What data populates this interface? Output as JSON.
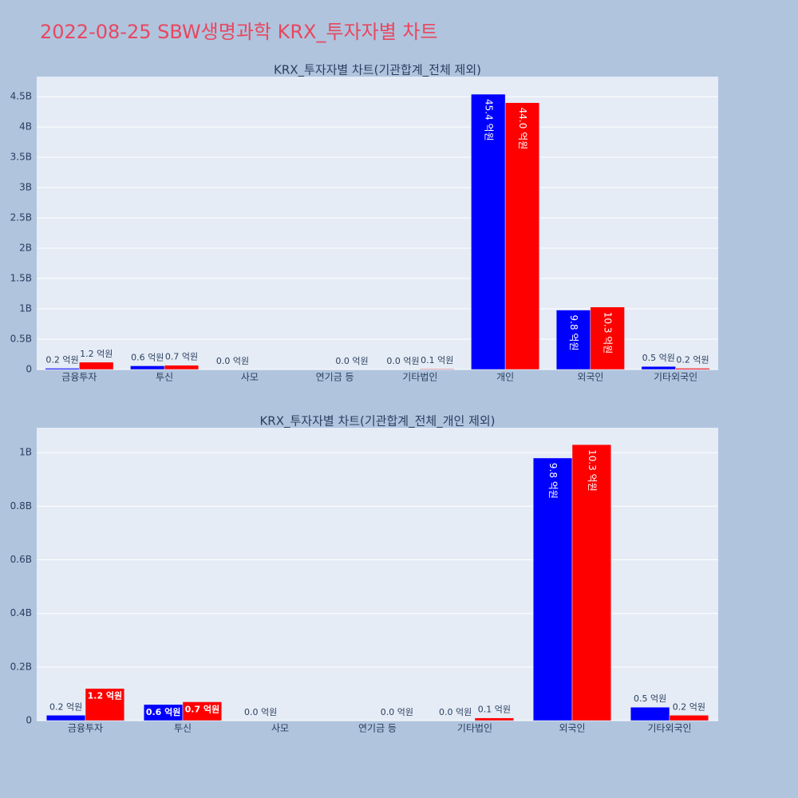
{
  "title": "2022-08-25 SBW생명과학 KRX_투자자별 차트",
  "chart_data": [
    {
      "type": "bar",
      "title": "KRX_투자자별 차트(기관합계_전체 제외)",
      "categories": [
        "금융투자",
        "투신",
        "사모",
        "연기금 등",
        "기타법인",
        "개인",
        "외국인",
        "기타외국인"
      ],
      "series": [
        {
          "color": "#0000ff",
          "values": [
            20000000,
            60000000,
            0,
            null,
            0,
            4540000000,
            980000000,
            50000000
          ],
          "value_labels": [
            "0.2 억원",
            "0.6 억원",
            "0.0 억원",
            null,
            "0.0 억원",
            "45.4 억원",
            "9.8 억원",
            "0.5 억원"
          ]
        },
        {
          "color": "#ff0000",
          "values": [
            120000000,
            70000000,
            null,
            0,
            10000000,
            4400000000,
            1030000000,
            20000000
          ],
          "value_labels": [
            "1.2 억원",
            "0.7 억원",
            null,
            "0.0 억원",
            "0.1 억원",
            "44.0 억원",
            "10.3 억원",
            "0.2 억원"
          ]
        }
      ],
      "ylim": [
        0,
        4830000000
      ],
      "yticks": [
        0,
        {
          "value": 500000000,
          "label": "0.5B"
        },
        {
          "value": 1000000000,
          "label": "1B"
        },
        {
          "value": 1500000000,
          "label": "1.5B"
        },
        {
          "value": 2000000000,
          "label": "2B"
        },
        {
          "value": 2500000000,
          "label": "2.5B"
        },
        {
          "value": 3000000000,
          "label": "3B"
        },
        {
          "value": 3500000000,
          "label": "3.5B"
        },
        {
          "value": 4000000000,
          "label": "4B"
        },
        {
          "value": 4500000000,
          "label": "4.5B"
        }
      ],
      "grid": true
    },
    {
      "type": "bar",
      "title": "KRX_투자자별 차트(기관합계_전체_개인 제외)",
      "categories": [
        "금융투자",
        "투신",
        "사모",
        "연기금 등",
        "기타법인",
        "외국인",
        "기타외국인"
      ],
      "series": [
        {
          "color": "#0000ff",
          "values": [
            20000000,
            60000000,
            0,
            null,
            0,
            980000000,
            50000000
          ],
          "value_labels": [
            "0.2 억원",
            "0.6 억원",
            "0.0 억원",
            null,
            "0.0 억원",
            "9.8 억원",
            "0.5 억원"
          ]
        },
        {
          "color": "#ff0000",
          "values": [
            120000000,
            70000000,
            null,
            0,
            10000000,
            1030000000,
            20000000
          ],
          "value_labels": [
            "1.2 억원",
            "0.7 억원",
            null,
            "0.0 억원",
            "0.1 억원",
            "10.3 억원",
            "0.2 억원"
          ]
        }
      ],
      "ylim": [
        0,
        1093000000
      ],
      "yticks": [
        0,
        {
          "value": 200000000,
          "label": "0.2B"
        },
        {
          "value": 400000000,
          "label": "0.4B"
        },
        {
          "value": 600000000,
          "label": "0.6B"
        },
        {
          "value": 800000000,
          "label": "0.8B"
        },
        {
          "value": 1000000000,
          "label": "1B"
        }
      ],
      "grid": true
    }
  ]
}
